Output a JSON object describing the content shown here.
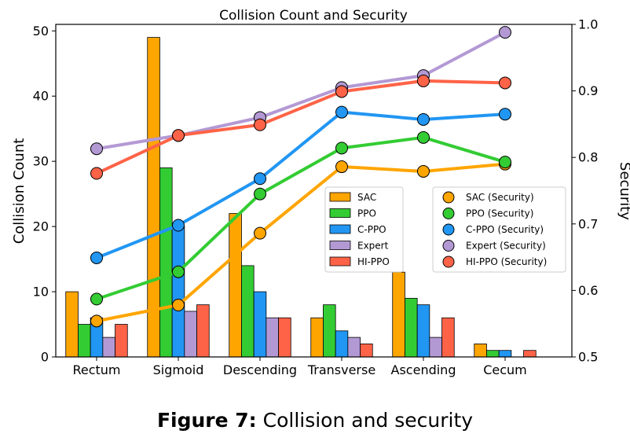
{
  "caption": {
    "label": "Figure 7:",
    "text": " Collision and security"
  },
  "chart_data": {
    "type": "bar+line",
    "title": "Collision Count and Security",
    "ylabel": "Collision Count",
    "y2label": "Security",
    "categories": [
      "Rectum",
      "Sigmoid",
      "Descending",
      "Transverse",
      "Ascending",
      "Cecum"
    ],
    "ylim": [
      0,
      51
    ],
    "y2lim": [
      0.5,
      1.0
    ],
    "yticks": [
      0,
      10,
      20,
      30,
      40,
      50
    ],
    "y2ticks": [
      0.5,
      0.6,
      0.7,
      0.8,
      0.9,
      1.0
    ],
    "bar_series": [
      {
        "name": "SAC",
        "color": "#FFA500",
        "values": [
          10,
          49,
          22,
          6,
          13,
          2
        ]
      },
      {
        "name": "PPO",
        "color": "#33CC33",
        "values": [
          5,
          29,
          14,
          8,
          9,
          1
        ]
      },
      {
        "name": "C-PPO",
        "color": "#2196F3",
        "values": [
          6,
          20,
          10,
          4,
          8,
          1
        ]
      },
      {
        "name": "Expert",
        "color": "#B399D4",
        "values": [
          3,
          7,
          6,
          3,
          3,
          0
        ]
      },
      {
        "name": "HI-PPO",
        "color": "#FF6347",
        "values": [
          5,
          8,
          6,
          2,
          6,
          1
        ]
      }
    ],
    "line_series": [
      {
        "name": "SAC (Security)",
        "color": "#FFA500",
        "values": [
          0.554,
          0.578,
          0.686,
          0.786,
          0.779,
          0.79
        ]
      },
      {
        "name": "PPO (Security)",
        "color": "#33CC33",
        "values": [
          0.587,
          0.628,
          0.745,
          0.814,
          0.83,
          0.793
        ]
      },
      {
        "name": "C-PPO (Security)",
        "color": "#2196F3",
        "values": [
          0.649,
          0.698,
          0.768,
          0.868,
          0.857,
          0.865
        ]
      },
      {
        "name": "Expert (Security)",
        "color": "#B399D4",
        "values": [
          0.813,
          0.833,
          0.86,
          0.905,
          0.923,
          0.988
        ]
      },
      {
        "name": "HI-PPO (Security)",
        "color": "#FF6347",
        "values": [
          0.776,
          0.833,
          0.849,
          0.899,
          0.915,
          0.912
        ]
      }
    ],
    "legend_bars_position": "center-right",
    "legend_lines_position": "right",
    "grid": false
  }
}
